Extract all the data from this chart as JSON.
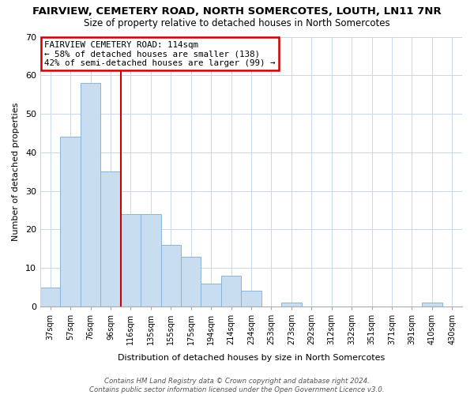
{
  "title": "FAIRVIEW, CEMETERY ROAD, NORTH SOMERCOTES, LOUTH, LN11 7NR",
  "subtitle": "Size of property relative to detached houses in North Somercotes",
  "xlabel": "Distribution of detached houses by size in North Somercotes",
  "ylabel": "Number of detached properties",
  "bar_labels": [
    "37sqm",
    "57sqm",
    "76sqm",
    "96sqm",
    "116sqm",
    "135sqm",
    "155sqm",
    "175sqm",
    "194sqm",
    "214sqm",
    "234sqm",
    "253sqm",
    "273sqm",
    "292sqm",
    "312sqm",
    "332sqm",
    "351sqm",
    "371sqm",
    "391sqm",
    "410sqm",
    "430sqm"
  ],
  "bar_heights": [
    5,
    44,
    58,
    35,
    24,
    24,
    16,
    13,
    6,
    8,
    4,
    0,
    1,
    0,
    0,
    0,
    0,
    0,
    0,
    1,
    0
  ],
  "bar_color": "#c9ddf0",
  "bar_edge_color": "#8ab4d8",
  "vline_color": "#cc0000",
  "vline_index": 3.5,
  "ylim": [
    0,
    70
  ],
  "yticks": [
    0,
    10,
    20,
    30,
    40,
    50,
    60,
    70
  ],
  "ann_line1": "FAIRVIEW CEMETERY ROAD: 114sqm",
  "ann_line2": "← 58% of detached houses are smaller (138)",
  "ann_line3": "42% of semi-detached houses are larger (99) →",
  "annotation_box_color": "#ffffff",
  "annotation_box_edge": "#cc0000",
  "footer_text": "Contains HM Land Registry data © Crown copyright and database right 2024.\nContains public sector information licensed under the Open Government Licence v3.0.",
  "background_color": "#ffffff",
  "grid_color": "#c8d8ec"
}
